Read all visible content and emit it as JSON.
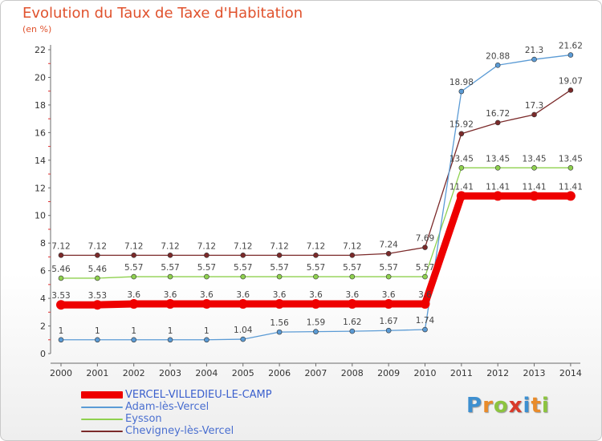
{
  "chart_data": {
    "type": "line",
    "title": "Evolution du Taux de Taxe d'Habitation",
    "ylabel": "(en %)",
    "xlabel": "",
    "x": [
      "2000",
      "2001",
      "2002",
      "2003",
      "2004",
      "2005",
      "2006",
      "2007",
      "2008",
      "2009",
      "2010",
      "2011",
      "2012",
      "2013",
      "2014"
    ],
    "ylim": [
      0,
      22
    ],
    "yticks": [
      0,
      2,
      4,
      6,
      8,
      10,
      12,
      14,
      16,
      18,
      20,
      22
    ],
    "grid": false,
    "legend_position": "bottom-left",
    "series": [
      {
        "name": "VERCEL-VILLEDIEU-LE-CAMP",
        "color": "#ee0000",
        "labels_shown": false,
        "values": [
          3.53,
          3.53,
          3.6,
          3.6,
          3.6,
          3.6,
          3.6,
          3.6,
          3.6,
          3.6,
          3.6,
          11.41,
          11.41,
          11.41,
          11.41
        ]
      },
      {
        "name": "Adam-lès-Vercel",
        "color": "#5b9bd5",
        "labels_shown": true,
        "values": [
          1,
          1,
          1,
          1,
          1,
          1.04,
          1.56,
          1.59,
          1.62,
          1.67,
          1.74,
          18.98,
          20.88,
          21.3,
          21.62
        ]
      },
      {
        "name": "Eysson",
        "color": "#8fd14f",
        "labels_shown": true,
        "values": [
          5.46,
          5.46,
          5.57,
          5.57,
          5.57,
          5.57,
          5.57,
          5.57,
          5.57,
          5.57,
          5.57,
          13.45,
          13.45,
          13.45,
          13.45
        ]
      },
      {
        "name": "Chevigney-lès-Vercel",
        "color": "#7b2a2a",
        "labels_shown": true,
        "values": [
          7.12,
          7.12,
          7.12,
          7.12,
          7.12,
          7.12,
          7.12,
          7.12,
          7.12,
          7.24,
          7.69,
          15.92,
          16.72,
          17.3,
          19.07
        ]
      }
    ],
    "data_labels": {
      "VERCEL-VILLEDIEU-LE-CAMP": [
        "3.53",
        "3.53",
        "3.6",
        "3.6",
        "3.6",
        "3.6",
        "3.6",
        "3.6",
        "3.6",
        "3.6",
        "3.6",
        "11.41",
        "11.41",
        "11.41",
        "11.41"
      ],
      "Adam-lès-Vercel": [
        "1",
        "1",
        "1",
        "1",
        "1",
        "1.04",
        "1.56",
        "1.59",
        "1.62",
        "1.67",
        "1.74",
        "18.98",
        "20.88",
        "21.3",
        "21.62"
      ],
      "Eysson": [
        "5.46",
        "5.46",
        "5.57",
        "5.57",
        "5.57",
        "5.57",
        "5.57",
        "5.57",
        "5.57",
        "5.57",
        "5.57",
        "13.45",
        "13.45",
        "13.45",
        "13.45"
      ],
      "Chevigney-lès-Vercel": [
        "7.12",
        "7.12",
        "7.12",
        "7.12",
        "7.12",
        "7.12",
        "7.12",
        "7.12",
        "7.12",
        "7.24",
        "7.69",
        "15.92",
        "16.72",
        "17.3",
        "19.07"
      ]
    }
  },
  "legend": {
    "items": [
      {
        "label": "VERCEL-VILLEDIEU-LE-CAMP",
        "color": "#ee0000"
      },
      {
        "label": "Adam-lès-Vercel",
        "color": "#5b9bd5"
      },
      {
        "label": "Eysson",
        "color": "#8fd14f"
      },
      {
        "label": "Chevigney-lès-Vercel",
        "color": "#7b2a2a"
      }
    ]
  },
  "brand": {
    "letters": [
      "P",
      "r",
      "o",
      "x",
      "i",
      "t",
      "i"
    ],
    "colors": [
      "#3d8fd0",
      "#e98b2a",
      "#8cc43f",
      "#d93a2a",
      "#3d8fd0",
      "#e98b2a",
      "#8cc43f"
    ]
  }
}
